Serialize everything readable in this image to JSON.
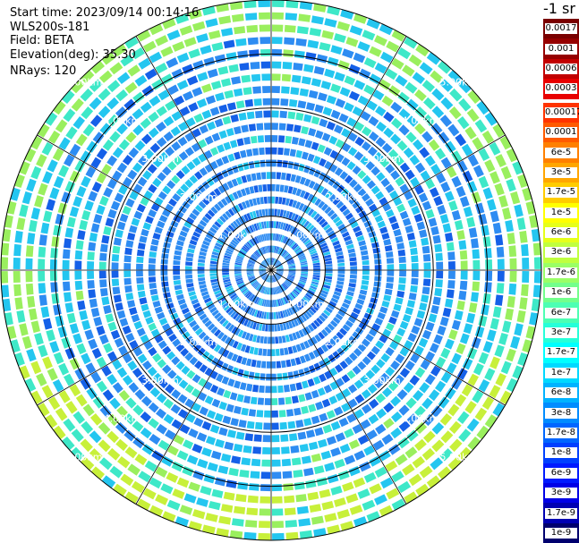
{
  "info": {
    "start_time": "Start time: 2023/09/14 00:14:16",
    "device": "WLS200s-181",
    "field": "Field: BETA",
    "elevation": "Elevation(deg): 35.30",
    "nrays": "NRays: 120"
  },
  "unit": "-1 sr",
  "ring_labels": [
    "1.00km",
    "2.00km",
    "3.00km",
    "4.00km",
    "5.00km"
  ],
  "legend": {
    "upper": [
      {
        "label": "0.0017",
        "color": "#7a0000"
      },
      {
        "label": "0.001",
        "color": "#960000"
      },
      {
        "label": "0.0006",
        "color": "#c20000"
      },
      {
        "label": "0.0003",
        "color": "#e80000"
      }
    ],
    "lower": [
      {
        "label": "0.00017",
        "color": "#ff3300"
      },
      {
        "label": "0.0001",
        "color": "#ff5a00"
      },
      {
        "label": "6e-5",
        "color": "#ff8000"
      },
      {
        "label": "3e-5",
        "color": "#ffa600"
      },
      {
        "label": "1.7e-5",
        "color": "#ffcc00"
      },
      {
        "label": "1e-5",
        "color": "#ffff00"
      },
      {
        "label": "6e-6",
        "color": "#e6ff1a"
      },
      {
        "label": "3e-6",
        "color": "#c0ff3f"
      },
      {
        "label": "1.7e-6",
        "color": "#9aff66"
      },
      {
        "label": "1e-6",
        "color": "#73ff8c"
      },
      {
        "label": "6e-7",
        "color": "#4dffb3"
      },
      {
        "label": "3e-7",
        "color": "#26ffd9"
      },
      {
        "label": "1.7e-7",
        "color": "#00ffff"
      },
      {
        "label": "1e-7",
        "color": "#00d9ff"
      },
      {
        "label": "6e-8",
        "color": "#00b3ff"
      },
      {
        "label": "3e-8",
        "color": "#008cff"
      },
      {
        "label": "1.7e-8",
        "color": "#0066ff"
      },
      {
        "label": "1e-8",
        "color": "#0040ff"
      },
      {
        "label": "6e-9",
        "color": "#001aff"
      },
      {
        "label": "3e-9",
        "color": "#0000e6"
      },
      {
        "label": "1.7e-9",
        "color": "#0000b3"
      },
      {
        "label": "1e-9",
        "color": "#00006e"
      }
    ]
  },
  "scan": {
    "nrays": 120,
    "max_range_km": 5.0,
    "ring_step_km": 1.0,
    "spoke_count": 12,
    "colors": {
      "near": "#2e8cf2",
      "mid": "#24c6f0",
      "far": "#3ee8c8",
      "edge": "#9aef5e",
      "dark": "#1560e8",
      "hot": "#c8f03a"
    }
  }
}
